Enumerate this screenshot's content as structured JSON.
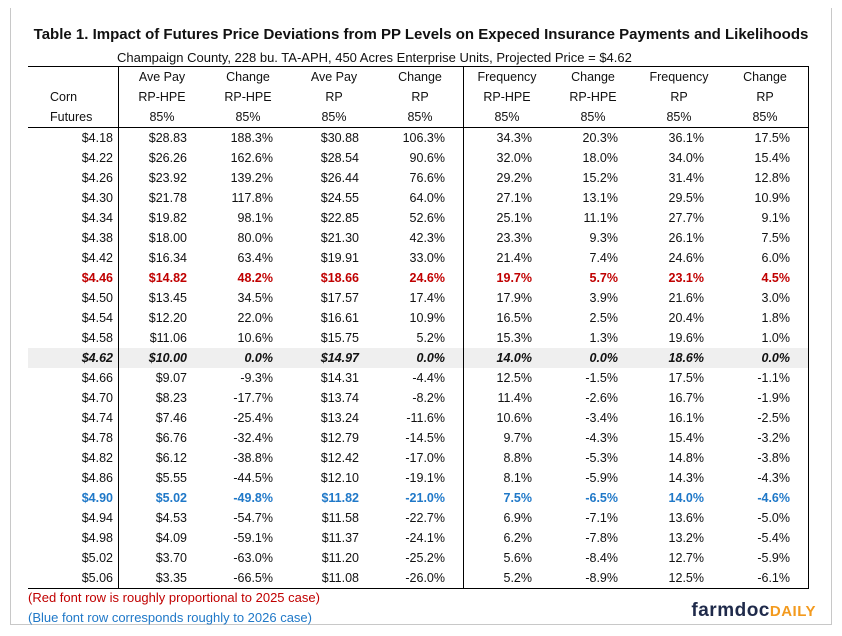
{
  "title": "Table 1. Impact of Futures Price Deviations from PP Levels on Expeced Insurance Payments and Likelihoods",
  "subtitle": "Champaign County, 228 bu. TA-APH, 450 Acres Enterprise Units, Projected Price = $4.62",
  "headers": {
    "row1": [
      "",
      "Ave Pay",
      "Change",
      "Ave Pay",
      "Change",
      "Frequency",
      "Change",
      "Frequency",
      "Change"
    ],
    "row2": [
      "Corn",
      "RP-HPE",
      "RP-HPE",
      "RP",
      "RP",
      "RP-HPE",
      "RP-HPE",
      "RP",
      "RP"
    ],
    "row3": [
      "Futures",
      "85%",
      "85%",
      "85%",
      "85%",
      "85%",
      "85%",
      "85%",
      "85%"
    ]
  },
  "rows": [
    [
      "$4.18",
      "$28.83",
      "188.3%",
      "$30.88",
      "106.3%",
      "34.3%",
      "20.3%",
      "36.1%",
      "17.5%"
    ],
    [
      "$4.22",
      "$26.26",
      "162.6%",
      "$28.54",
      "90.6%",
      "32.0%",
      "18.0%",
      "34.0%",
      "15.4%"
    ],
    [
      "$4.26",
      "$23.92",
      "139.2%",
      "$26.44",
      "76.6%",
      "29.2%",
      "15.2%",
      "31.4%",
      "12.8%"
    ],
    [
      "$4.30",
      "$21.78",
      "117.8%",
      "$24.55",
      "64.0%",
      "27.1%",
      "13.1%",
      "29.5%",
      "10.9%"
    ],
    [
      "$4.34",
      "$19.82",
      "98.1%",
      "$22.85",
      "52.6%",
      "25.1%",
      "11.1%",
      "27.7%",
      "9.1%"
    ],
    [
      "$4.38",
      "$18.00",
      "80.0%",
      "$21.30",
      "42.3%",
      "23.3%",
      "9.3%",
      "26.1%",
      "7.5%"
    ],
    [
      "$4.42",
      "$16.34",
      "63.4%",
      "$19.91",
      "33.0%",
      "21.4%",
      "7.4%",
      "24.6%",
      "6.0%"
    ],
    [
      "$4.46",
      "$14.82",
      "48.2%",
      "$18.66",
      "24.6%",
      "19.7%",
      "5.7%",
      "23.1%",
      "4.5%"
    ],
    [
      "$4.50",
      "$13.45",
      "34.5%",
      "$17.57",
      "17.4%",
      "17.9%",
      "3.9%",
      "21.6%",
      "3.0%"
    ],
    [
      "$4.54",
      "$12.20",
      "22.0%",
      "$16.61",
      "10.9%",
      "16.5%",
      "2.5%",
      "20.4%",
      "1.8%"
    ],
    [
      "$4.58",
      "$11.06",
      "10.6%",
      "$15.75",
      "5.2%",
      "15.3%",
      "1.3%",
      "19.6%",
      "1.0%"
    ],
    [
      "$4.62",
      "$10.00",
      "0.0%",
      "$14.97",
      "0.0%",
      "14.0%",
      "0.0%",
      "18.6%",
      "0.0%"
    ],
    [
      "$4.66",
      "$9.07",
      "-9.3%",
      "$14.31",
      "-4.4%",
      "12.5%",
      "-1.5%",
      "17.5%",
      "-1.1%"
    ],
    [
      "$4.70",
      "$8.23",
      "-17.7%",
      "$13.74",
      "-8.2%",
      "11.4%",
      "-2.6%",
      "16.7%",
      "-1.9%"
    ],
    [
      "$4.74",
      "$7.46",
      "-25.4%",
      "$13.24",
      "-11.6%",
      "10.6%",
      "-3.4%",
      "16.1%",
      "-2.5%"
    ],
    [
      "$4.78",
      "$6.76",
      "-32.4%",
      "$12.79",
      "-14.5%",
      "9.7%",
      "-4.3%",
      "15.4%",
      "-3.2%"
    ],
    [
      "$4.82",
      "$6.12",
      "-38.8%",
      "$12.42",
      "-17.0%",
      "8.8%",
      "-5.3%",
      "14.8%",
      "-3.8%"
    ],
    [
      "$4.86",
      "$5.55",
      "-44.5%",
      "$12.10",
      "-19.1%",
      "8.1%",
      "-5.9%",
      "14.3%",
      "-4.3%"
    ],
    [
      "$4.90",
      "$5.02",
      "-49.8%",
      "$11.82",
      "-21.0%",
      "7.5%",
      "-6.5%",
      "14.0%",
      "-4.6%"
    ],
    [
      "$4.94",
      "$4.53",
      "-54.7%",
      "$11.58",
      "-22.7%",
      "6.9%",
      "-7.1%",
      "13.6%",
      "-5.0%"
    ],
    [
      "$4.98",
      "$4.09",
      "-59.1%",
      "$11.37",
      "-24.1%",
      "6.2%",
      "-7.8%",
      "13.2%",
      "-5.4%"
    ],
    [
      "$5.02",
      "$3.70",
      "-63.0%",
      "$11.20",
      "-25.2%",
      "5.6%",
      "-8.4%",
      "12.7%",
      "-5.9%"
    ],
    [
      "$5.06",
      "$3.35",
      "-66.5%",
      "$11.08",
      "-26.0%",
      "5.2%",
      "-8.9%",
      "12.5%",
      "-6.1%"
    ]
  ],
  "highlight": {
    "red_row": 7,
    "base_row": 11,
    "blue_row": 18,
    "red_color": "#c00000",
    "blue_color": "#1f78c8"
  },
  "notes": {
    "red": "(Red font row is roughly proportional to 2025 case)",
    "blue": "(Blue font row corresponds roughly to 2026 case)"
  },
  "logo": {
    "main": "farmdoc",
    "accent": "DAILY"
  }
}
